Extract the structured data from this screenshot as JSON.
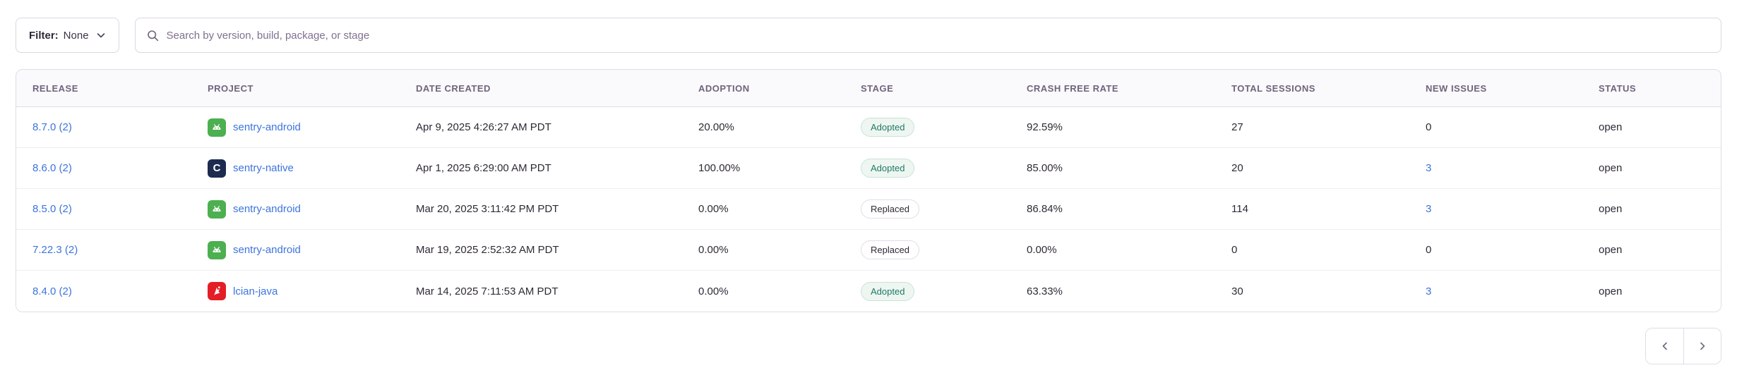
{
  "colors": {
    "link_blue": "#3C74DD",
    "header_text": "#71637E",
    "body_text": "#2F2936",
    "border": "#E0DCE5",
    "adopted_green": "#207964",
    "android_green": "#4CAF50",
    "native_navy": "#1D2B50",
    "java_red": "#E41E26"
  },
  "toolbar": {
    "filter_label": "Filter:",
    "filter_value": "None",
    "filter_chevron_icon": "chevron-down-icon",
    "search_icon": "search-icon",
    "search_placeholder": "Search by version, build, package, or stage",
    "search_value": ""
  },
  "table": {
    "headers": [
      "RELEASE",
      "PROJECT",
      "DATE CREATED",
      "ADOPTION",
      "STAGE",
      "CRASH FREE RATE",
      "TOTAL SESSIONS",
      "NEW ISSUES",
      "STATUS"
    ],
    "rows": [
      {
        "release": "8.7.0 (2)",
        "project": {
          "name": "sentry-android",
          "platform_icon": "android-icon"
        },
        "date_created": "Apr 9, 2025 4:26:27 AM PDT",
        "adoption": "20.00%",
        "stage": {
          "label": "Adopted",
          "variant": "adopted"
        },
        "crash_free_rate": "92.59%",
        "total_sessions": "27",
        "new_issues": {
          "label": "0",
          "is_link": false
        },
        "status": "open"
      },
      {
        "release": "8.6.0 (2)",
        "project": {
          "name": "sentry-native",
          "platform_icon": "c-icon"
        },
        "date_created": "Apr 1, 2025 6:29:00 AM PDT",
        "adoption": "100.00%",
        "stage": {
          "label": "Adopted",
          "variant": "adopted"
        },
        "crash_free_rate": "85.00%",
        "total_sessions": "20",
        "new_issues": {
          "label": "3",
          "is_link": true
        },
        "status": "open"
      },
      {
        "release": "8.5.0 (2)",
        "project": {
          "name": "sentry-android",
          "platform_icon": "android-icon"
        },
        "date_created": "Mar 20, 2025 3:11:42 PM PDT",
        "adoption": "0.00%",
        "stage": {
          "label": "Replaced",
          "variant": "replaced"
        },
        "crash_free_rate": "86.84%",
        "total_sessions": "114",
        "new_issues": {
          "label": "3",
          "is_link": true
        },
        "status": "open"
      },
      {
        "release": "7.22.3 (2)",
        "project": {
          "name": "sentry-android",
          "platform_icon": "android-icon"
        },
        "date_created": "Mar 19, 2025 2:52:32 AM PDT",
        "adoption": "0.00%",
        "stage": {
          "label": "Replaced",
          "variant": "replaced"
        },
        "crash_free_rate": "0.00%",
        "total_sessions": "0",
        "new_issues": {
          "label": "0",
          "is_link": false
        },
        "status": "open"
      },
      {
        "release": "8.4.0 (2)",
        "project": {
          "name": "lcian-java",
          "platform_icon": "java-icon"
        },
        "date_created": "Mar 14, 2025 7:11:53 AM PDT",
        "adoption": "0.00%",
        "stage": {
          "label": "Adopted",
          "variant": "adopted"
        },
        "crash_free_rate": "63.33%",
        "total_sessions": "30",
        "new_issues": {
          "label": "3",
          "is_link": true
        },
        "status": "open"
      }
    ]
  },
  "pagination": {
    "prev_icon": "chevron-left-icon",
    "next_icon": "chevron-right-icon"
  }
}
